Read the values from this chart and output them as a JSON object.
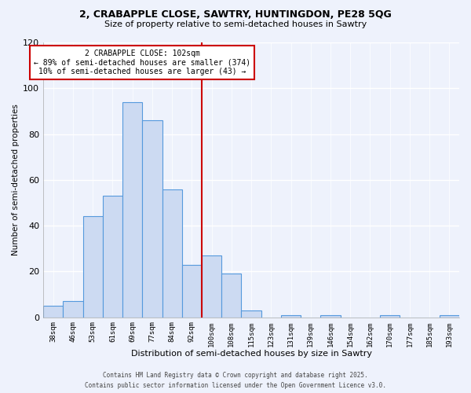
{
  "title": "2, CRABAPPLE CLOSE, SAWTRY, HUNTINGDON, PE28 5QG",
  "subtitle": "Size of property relative to semi-detached houses in Sawtry",
  "xlabel": "Distribution of semi-detached houses by size in Sawtry",
  "ylabel": "Number of semi-detached properties",
  "bar_labels": [
    "38sqm",
    "46sqm",
    "53sqm",
    "61sqm",
    "69sqm",
    "77sqm",
    "84sqm",
    "92sqm",
    "100sqm",
    "108sqm",
    "115sqm",
    "123sqm",
    "131sqm",
    "139sqm",
    "146sqm",
    "154sqm",
    "162sqm",
    "170sqm",
    "177sqm",
    "185sqm",
    "193sqm"
  ],
  "bar_values": [
    5,
    7,
    44,
    53,
    94,
    86,
    56,
    23,
    27,
    19,
    3,
    0,
    1,
    0,
    1,
    0,
    0,
    1,
    0,
    0,
    1
  ],
  "bar_color": "#ccdaf2",
  "bar_edge_color": "#5599dd",
  "vline_color": "#cc0000",
  "ylim": [
    0,
    120
  ],
  "yticks": [
    0,
    20,
    40,
    60,
    80,
    100,
    120
  ],
  "annotation_title": "2 CRABAPPLE CLOSE: 102sqm",
  "annotation_line1": "← 89% of semi-detached houses are smaller (374)",
  "annotation_line2": "10% of semi-detached houses are larger (43) →",
  "annotation_box_color": "#ffffff",
  "annotation_box_edge": "#cc0000",
  "footer_line1": "Contains HM Land Registry data © Crown copyright and database right 2025.",
  "footer_line2": "Contains public sector information licensed under the Open Government Licence v3.0.",
  "background_color": "#eef2fc",
  "grid_color": "#ffffff"
}
